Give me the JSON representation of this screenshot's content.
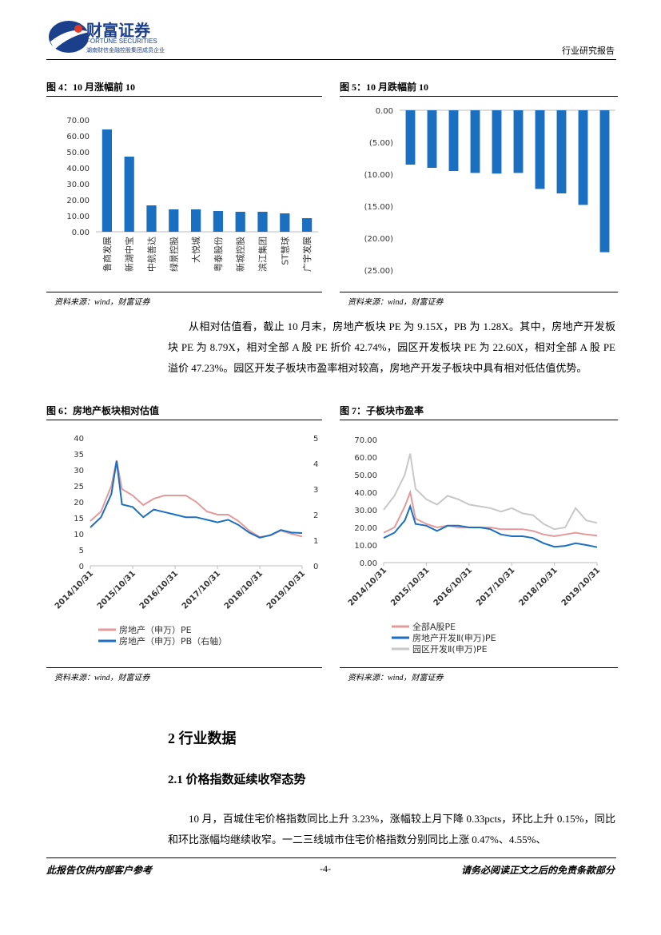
{
  "header": {
    "logo_cn": "财富证券",
    "logo_en": "FORTUNE SECURITIES",
    "logo_sub": "湖南财信金融控股集团成员企业",
    "report_type": "行业研究报告"
  },
  "figures": [
    {
      "title": "图 4：10 月涨幅前 10",
      "source": "资料来源：wind，财富证券",
      "chart": {
        "type": "bar",
        "categories": [
          "鲁商发展",
          "新湖中宝",
          "中航善达",
          "绿景控股",
          "大悦城",
          "粤泰股份",
          "新城控股",
          "滨江集团",
          "ST慧球",
          "广宇发展"
        ],
        "values": [
          64,
          47,
          16.5,
          14,
          14,
          13,
          12.5,
          12.5,
          11.5,
          8.5
        ],
        "color": "#1b6fc0",
        "ylim": [
          0,
          70
        ],
        "yticks": [
          {
            "value": 0,
            "label": "0.00"
          },
          {
            "value": 10,
            "label": "10.00"
          },
          {
            "value": 20,
            "label": "20.00"
          },
          {
            "value": 30,
            "label": "30.00"
          },
          {
            "value": 40,
            "label": "40.00"
          },
          {
            "value": 50,
            "label": "50.00"
          },
          {
            "value": 60,
            "label": "60.00"
          },
          {
            "value": 70,
            "label": "70.00"
          }
        ]
      }
    },
    {
      "title": "图 5：10 月跌幅前 10",
      "source": "资料来源：wind，财富证券",
      "chart": {
        "type": "bar",
        "categories": [
          null,
          null,
          null,
          null,
          null,
          null,
          null,
          null,
          null,
          null
        ],
        "values": [
          -8.5,
          -9,
          -9.5,
          -9.8,
          -9.9,
          -9.8,
          -12.3,
          -13,
          -14.8,
          -22.2
        ],
        "color": "#1b6fc0",
        "ylim": [
          -25,
          0
        ],
        "yticks": [
          {
            "value": 0,
            "label": "0.00"
          },
          {
            "value": -5,
            "label": "(5.00)"
          },
          {
            "value": -10,
            "label": "(10.00)"
          },
          {
            "value": -15,
            "label": "(15.00)"
          },
          {
            "value": -20,
            "label": "(20.00)"
          },
          {
            "value": -25,
            "label": "(25.00)"
          }
        ]
      }
    },
    {
      "title": "图 6：房地产板块相对估值",
      "source": "资料来源：wind，财富证券",
      "chart": {
        "type": "line",
        "x": [
          "2014/10/31",
          "2015/01/31",
          "2015/04/30",
          "2015/06/15",
          "2015/07/31",
          "2015/10/31",
          "2016/01/31",
          "2016/04/30",
          "2016/07/31",
          "2016/10/31",
          "2017/01/31",
          "2017/04/30",
          "2017/07/31",
          "2017/10/31",
          "2018/01/31",
          "2018/04/30",
          "2018/07/31",
          "2018/10/31",
          "2019/01/31",
          "2019/04/30",
          "2019/07/31",
          "2019/10/31"
        ],
        "xlim": [
          "2014/10/31",
          "2019/10/31"
        ],
        "xticks": [
          "2014/10/31",
          "2015/10/31",
          "2016/10/31",
          "2017/10/31",
          "2018/10/31",
          "2019/10/31"
        ],
        "ylim": [
          0,
          40
        ],
        "yticks": [
          0,
          5,
          10,
          15,
          20,
          25,
          30,
          35,
          40
        ],
        "y2lim": [
          0,
          5
        ],
        "y2ticks": [
          0,
          1,
          2,
          3,
          4,
          5
        ],
        "series": [
          {
            "name": "房地产（申万）PE",
            "color": "#e39a9a",
            "values": [
              14,
              17,
              25,
              33,
              24,
              22,
              19,
              21,
              22,
              22,
              22,
              20,
              17,
              16,
              16,
              14,
              11,
              9,
              9.5,
              11,
              10,
              9.15
            ]
          },
          {
            "name": "房地产（申万）PB（右轴）",
            "color": "#1b6fc0",
            "axis": "y2",
            "values": [
              1.5,
              1.9,
              2.8,
              4.1,
              2.4,
              2.3,
              1.9,
              2.2,
              2.1,
              2,
              1.9,
              1.9,
              1.8,
              1.7,
              1.8,
              1.6,
              1.3,
              1.1,
              1.2,
              1.4,
              1.3,
              1.28
            ]
          }
        ]
      }
    },
    {
      "title": "图 7：子板块市盈率",
      "source": "资料来源：wind，财富证券",
      "chart": {
        "type": "line",
        "x": [
          "2014/10/31",
          "2015/01/31",
          "2015/04/30",
          "2015/06/15",
          "2015/07/31",
          "2015/10/31",
          "2016/01/31",
          "2016/04/30",
          "2016/07/31",
          "2016/10/31",
          "2017/01/31",
          "2017/04/30",
          "2017/07/31",
          "2017/10/31",
          "2018/01/31",
          "2018/04/30",
          "2018/07/31",
          "2018/10/31",
          "2019/01/31",
          "2019/04/30",
          "2019/07/31",
          "2019/10/31"
        ],
        "xlim": [
          "2014/10/31",
          "2019/10/31"
        ],
        "xticks": [
          "2014/10/31",
          "2015/10/31",
          "2016/10/31",
          "2017/10/31",
          "2018/10/31",
          "2019/10/31"
        ],
        "ylim": [
          0,
          70
        ],
        "yticks": [
          {
            "value": 0,
            "label": "0.00"
          },
          {
            "value": 10,
            "label": "10.00"
          },
          {
            "value": 20,
            "label": "20.00"
          },
          {
            "value": 30,
            "label": "30.00"
          },
          {
            "value": 40,
            "label": "40.00"
          },
          {
            "value": 50,
            "label": "50.00"
          },
          {
            "value": 60,
            "label": "60.00"
          },
          {
            "value": 70,
            "label": "70.00"
          }
        ],
        "series": [
          {
            "name": "全部A股PE",
            "color": "#e39a9a",
            "values": [
              17,
              20,
              32,
              40,
              25,
              22,
              20,
              21,
              20,
              20,
              20,
              20,
              19,
              19,
              19,
              18,
              16,
              15,
              16,
              17,
              16,
              15.35
            ]
          },
          {
            "name": "房地产开发Ⅱ(申万)PE",
            "color": "#1b6fc0",
            "values": [
              14,
              17,
              24,
              32,
              22,
              21,
              18,
              21,
              21,
              20,
              20,
              19,
              16,
              15,
              15,
              14,
              11,
              9,
              9.5,
              11,
              10,
              8.79
            ]
          },
          {
            "name": "园区开发Ⅱ(申万)PE",
            "color": "#c8c8c8",
            "values": [
              30,
              38,
              50,
              62,
              42,
              36,
              33,
              38,
              36,
              33,
              32,
              31,
              29,
              31,
              28,
              27,
              22,
              19,
              20,
              31,
              24,
              22.6
            ]
          }
        ]
      }
    }
  ],
  "paragraph1": "从相对估值看，截止 10 月末，房地产板块 PE 为 9.15X，PB 为 1.28X。其中，房地产开发板块 PE 为 8.79X，相对全部 A 股 PE 折价 42.74%，园区开发板块 PE 为 22.60X，相对全部 A 股 PE 溢价 47.23%。园区开发子板块市盈率相对较高，房地产开发子板块中具有相对低估值优势。",
  "section": "2 行业数据",
  "subsection": "2.1 价格指数延续收窄态势",
  "paragraph2": "10 月，百城住宅价格指数同比上升 3.23%，涨幅较上月下降 0.33pcts，环比上升 0.15%，同比和环比涨幅均继续收窄。一二三线城市住宅价格指数分别同比上涨 0.47%、4.55%、",
  "footer": {
    "left": "此报告仅供内部客户参考",
    "center": "-4-",
    "right": "请务必阅读正文之后的免责条款部分"
  }
}
